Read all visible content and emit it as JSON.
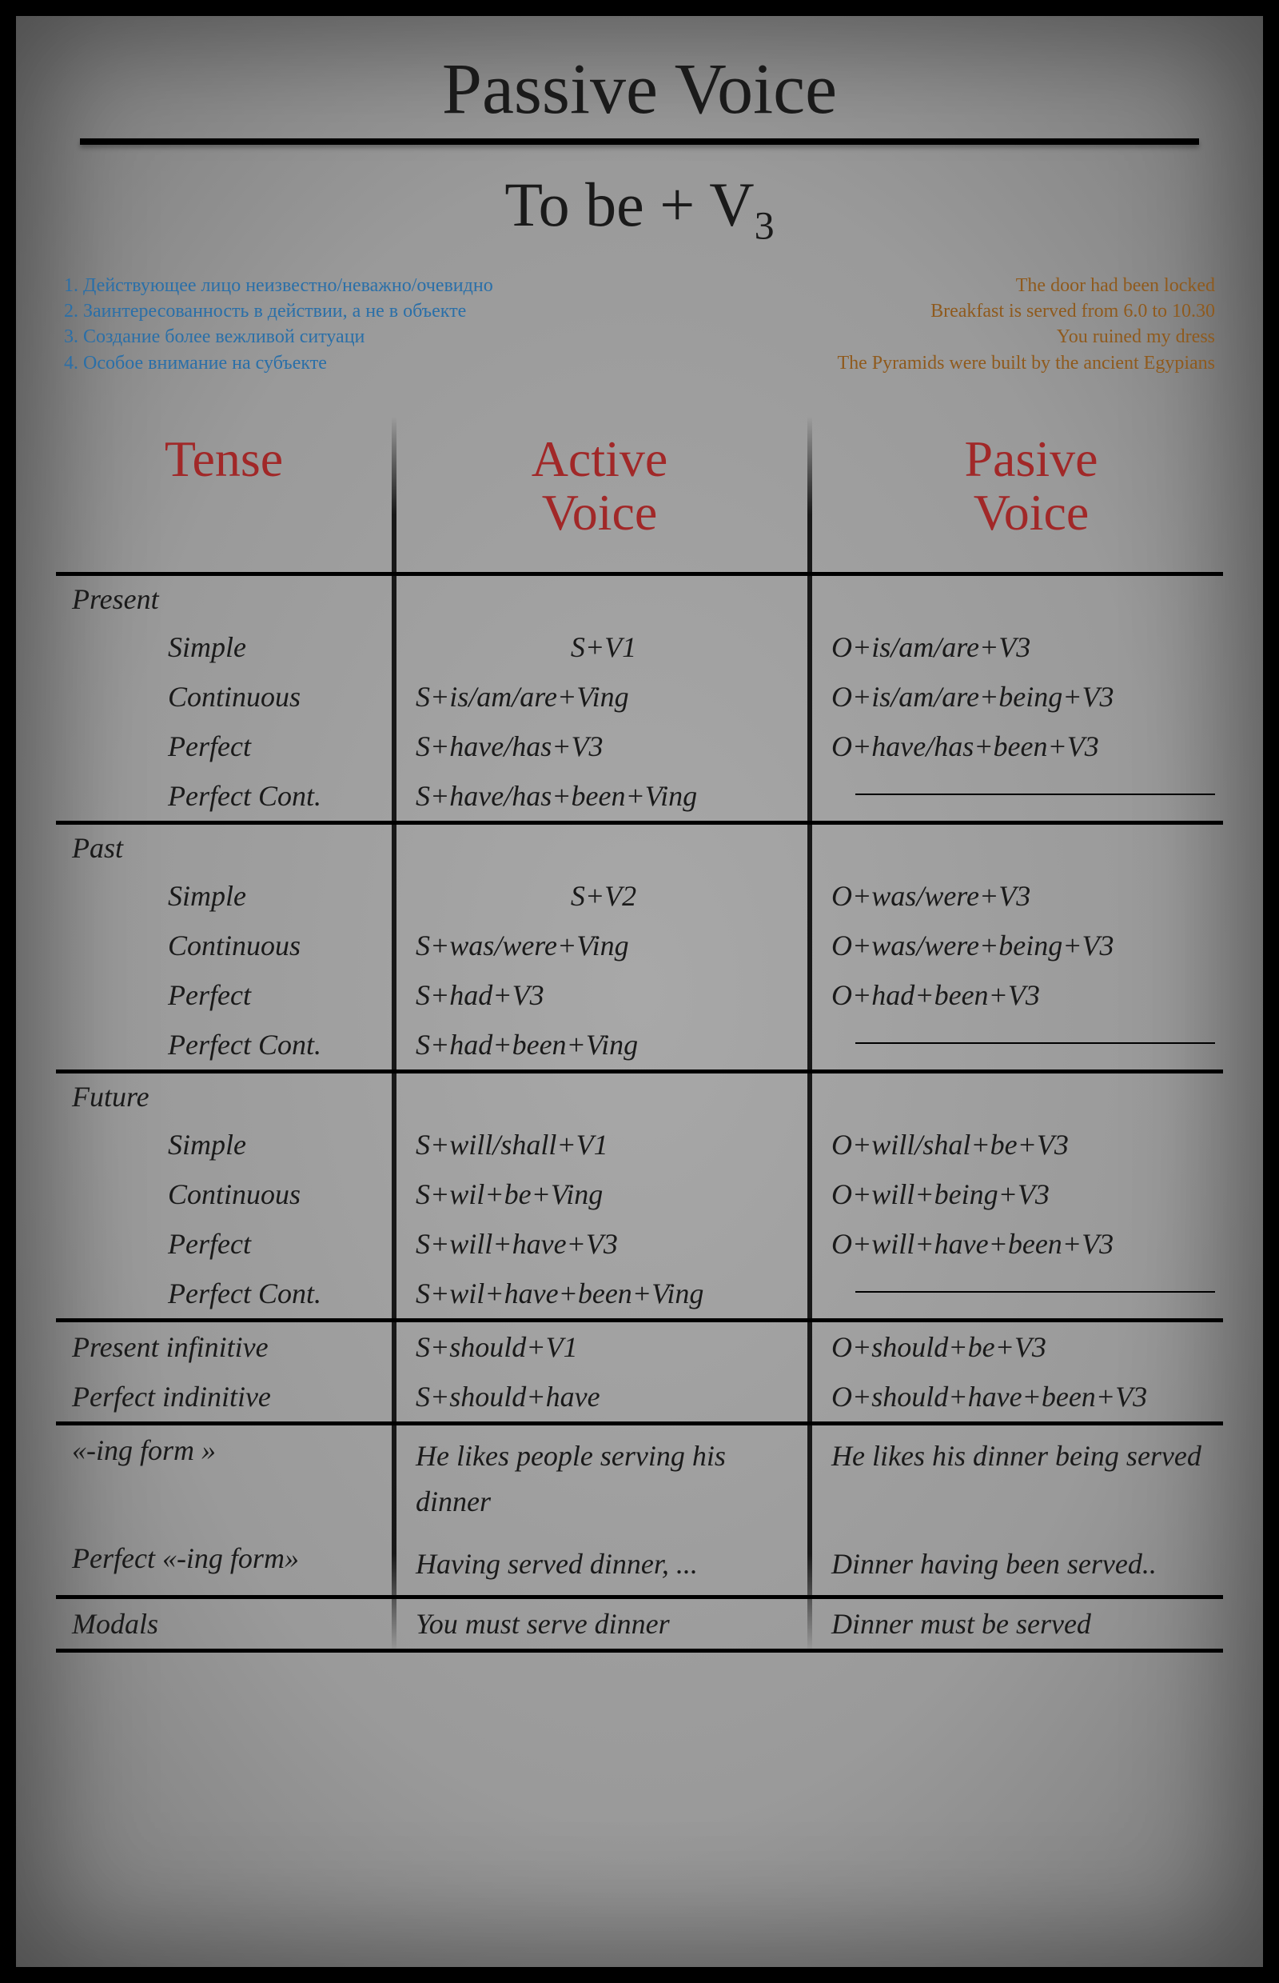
{
  "title": "Passive Voice",
  "subtitle_prefix": "To be + V",
  "subtitle_sub": "3",
  "notes_left": [
    "1. Действующее лицо неизвестно/неважно/очевидно",
    "2. Заинтересованность в действии, а не в объекте",
    "3. Создание более вежливой ситуаци",
    "4. Особое внимание на субъекте"
  ],
  "notes_right": [
    "The door had been locked",
    "Breakfast is served from 6.0 to 10.30",
    "You ruined my dress",
    "The Pyramids were built by the ancient Egypians"
  ],
  "headers": {
    "tense": "Tense",
    "active": "Active\nVoice",
    "passive": "Pasive\nVoice"
  },
  "groups": [
    {
      "label": "Present",
      "rows": [
        {
          "tense": "Simple",
          "active": "S+V1",
          "active_center": true,
          "passive": "O+is/am/are+V3"
        },
        {
          "tense": "Continuous",
          "active": "S+is/am/are+Ving",
          "passive": "O+is/am/are+being+V3"
        },
        {
          "tense": "Perfect",
          "active": "S+have/has+V3",
          "passive": "O+have/has+been+V3"
        },
        {
          "tense": "Perfect Cont.",
          "active": "S+have/has+been+Ving",
          "passive_dash": true
        }
      ]
    },
    {
      "label": "Past",
      "rows": [
        {
          "tense": "Simple",
          "active": "S+V2",
          "active_center": true,
          "passive": "O+was/were+V3"
        },
        {
          "tense": "Continuous",
          "active": "S+was/were+Ving",
          "passive": "O+was/were+being+V3"
        },
        {
          "tense": "Perfect",
          "active": "S+had+V3",
          "passive": "O+had+been+V3"
        },
        {
          "tense": "Perfect Cont.",
          "active": "S+had+been+Ving",
          "passive_dash": true
        }
      ]
    },
    {
      "label": "Future",
      "rows": [
        {
          "tense": "Simple",
          "active": "S+will/shall+V1",
          "passive": "O+will/shal+be+V3"
        },
        {
          "tense": "Continuous",
          "active": "S+wil+be+Ving",
          "passive": "O+will+being+V3"
        },
        {
          "tense": "Perfect",
          "active": "S+will+have+V3",
          "passive": "O+will+have+been+V3"
        },
        {
          "tense": "Perfect Cont.",
          "active": "S+wil+have+been+Ving",
          "passive_dash": true
        }
      ]
    }
  ],
  "extra_rows": [
    {
      "tense": "Present infinitive",
      "active": "S+should+V1",
      "passive": "O+should+be+V3"
    },
    {
      "tense": "Perfect indinitive",
      "active": "S+should+have",
      "passive": "O+should+have+been+V3"
    },
    {
      "tense": "«-ing form »",
      "active": "He likes people serving his dinner",
      "passive": "He likes his dinner being served",
      "double": true
    },
    {
      "tense": "Perfect «-ing form»",
      "active": "Having served dinner, ...",
      "passive": "Dinner having been served..",
      "double": true
    },
    {
      "tense": "Modals",
      "active": "You must serve dinner",
      "passive": "Dinner must be served"
    }
  ],
  "colors": {
    "header_red": "#a12828",
    "notes_blue": "#2a6fa8",
    "notes_brown": "#8f5a1d",
    "background": "#a2a2a2"
  }
}
